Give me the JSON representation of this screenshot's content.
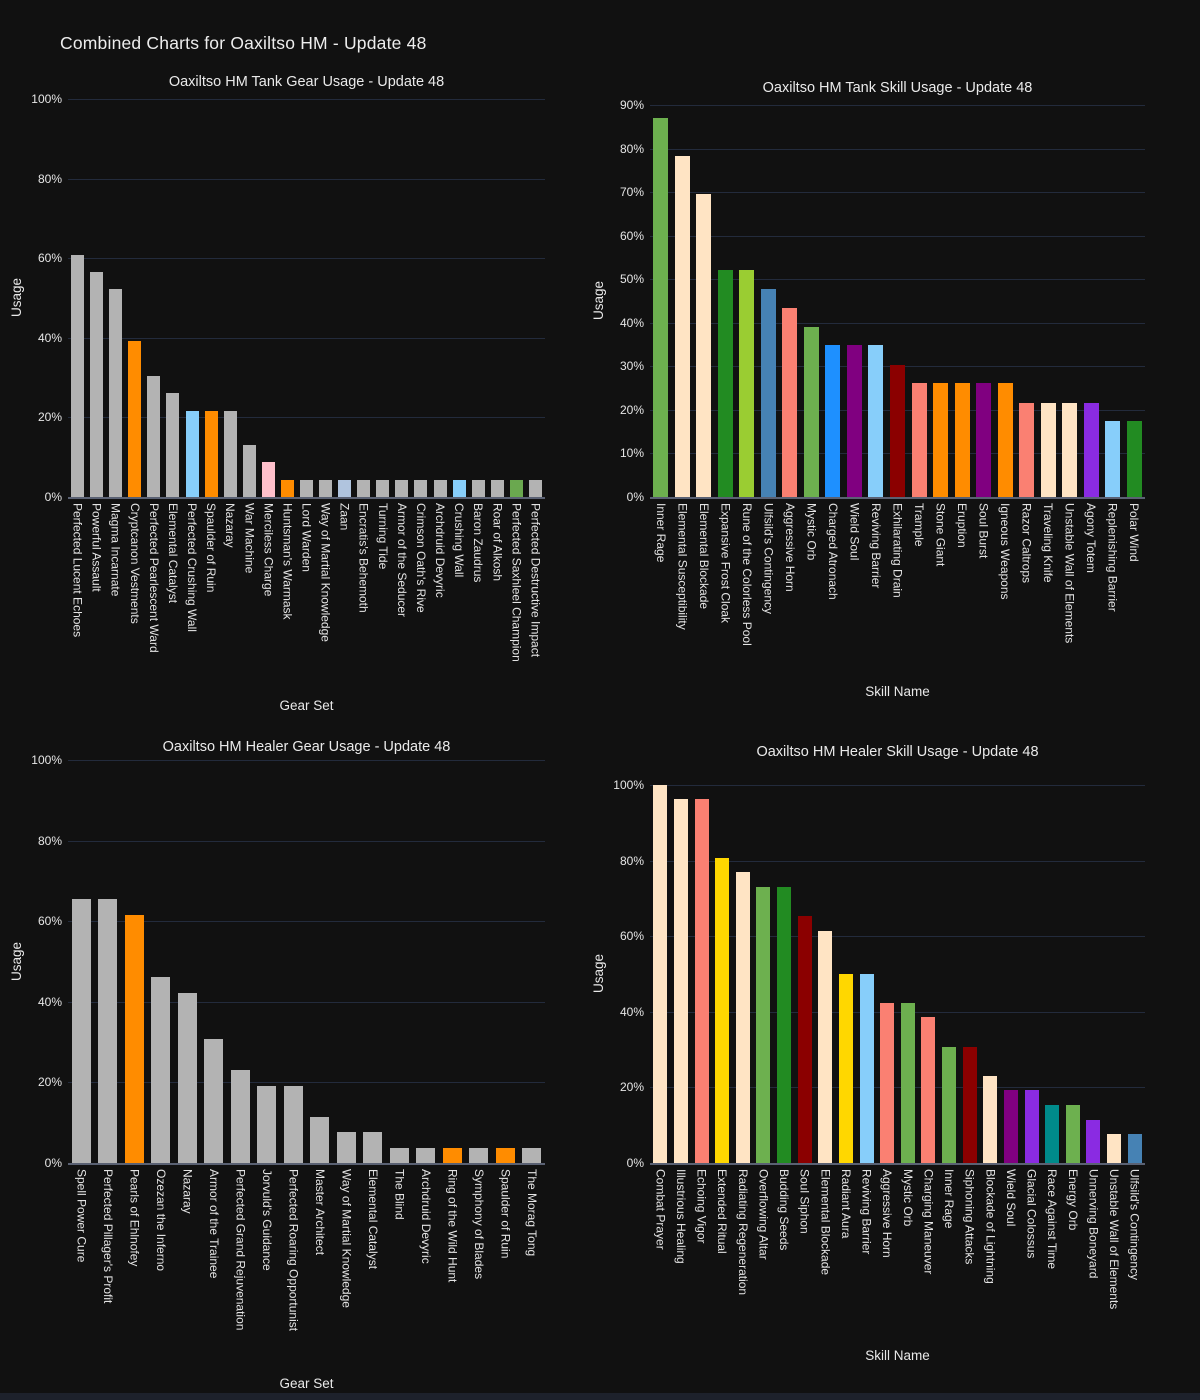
{
  "page": {
    "title": "Combined Charts for Oaxiltso HM - Update 48"
  },
  "colors": {
    "background": "#111111",
    "grid": "#232b3c",
    "axis_line": "#5a6173",
    "text": "#e9e9e9",
    "bar_default_gray": "#b3b3b3",
    "accent_orange": "#ff8c00"
  },
  "chart_data": [
    {
      "type": "bar",
      "title": "Oaxiltso HM Tank Gear Usage - Update 48",
      "xlabel": "Gear Set",
      "ylabel": "Usage",
      "ylim": [
        0,
        100
      ],
      "yticks": [
        "100%",
        "80%",
        "60%",
        "40%",
        "20%",
        "0%"
      ],
      "grid": true,
      "legend": "none",
      "categories": [
        "Perfected Lucent Echoes",
        "Powerful Assault",
        "Magma Incarnate",
        "Cryptcanon Vestments",
        "Perfected Pearlescent Ward",
        "Elemental Catalyst",
        "Perfected Crushing Wall",
        "Spaulder of Ruin",
        "Nazaray",
        "War Machine",
        "Merciless Charge",
        "Huntsman's Warmask",
        "Lord Warden",
        "Way of Martial Knowledge",
        "Zaan",
        "Encratis's Behemoth",
        "Turning Tide",
        "Armor of the Seducer",
        "Crimson Oath's Rive",
        "Archdruid Devyric",
        "Crushing Wall",
        "Baron Zaudrus",
        "Roar of Alkosh",
        "Perfected Saxhleel Champion",
        "Perfected Destructive Impact"
      ],
      "values": [
        60.9,
        56.5,
        52.2,
        39.1,
        30.4,
        26.1,
        21.7,
        21.7,
        21.7,
        13.0,
        8.7,
        4.3,
        4.3,
        4.3,
        4.3,
        4.3,
        4.3,
        4.3,
        4.3,
        4.3,
        4.3,
        4.3,
        4.3,
        4.3,
        4.3
      ],
      "bar_colors": [
        "#b3b3b3",
        "#b3b3b3",
        "#b3b3b3",
        "#ff8c00",
        "#b3b3b3",
        "#b3b3b3",
        "#87cefa",
        "#ff8c00",
        "#b3b3b3",
        "#b3b3b3",
        "#ffc0cb",
        "#ff8c00",
        "#b3b3b3",
        "#b3b3b3",
        "#b0c4de",
        "#b3b3b3",
        "#b3b3b3",
        "#b3b3b3",
        "#b3b3b3",
        "#b3b3b3",
        "#87cefa",
        "#b3b3b3",
        "#b3b3b3",
        "#6aa84f",
        "#b3b3b3"
      ]
    },
    {
      "type": "bar",
      "title": "Oaxiltso HM Tank Skill Usage - Update 48",
      "xlabel": "Skill Name",
      "ylabel": "Usage",
      "ylim": [
        0,
        90
      ],
      "yticks": [
        "90%",
        "80%",
        "70%",
        "60%",
        "50%",
        "40%",
        "30%",
        "20%",
        "10%",
        "0%"
      ],
      "grid": true,
      "legend": "none",
      "categories": [
        "Inner Rage",
        "Elemental Susceptibility",
        "Elemental Blockade",
        "Expansive Frost Cloak",
        "Rune of the Colorless Pool",
        "Ulfsild's Contingency",
        "Aggressive Horn",
        "Mystic Orb",
        "Charged Atronach",
        "Wield Soul",
        "Reviving Barrier",
        "Exhilarating Drain",
        "Trample",
        "Stone Giant",
        "Eruption",
        "Soul Burst",
        "Igneous Weapons",
        "Razor Caltrops",
        "Traveling Knife",
        "Unstable Wall of Elements",
        "Agony Totem",
        "Replenishing Barrier",
        "Polar Wind"
      ],
      "values": [
        87.0,
        78.3,
        69.6,
        52.2,
        52.2,
        47.8,
        43.5,
        39.1,
        34.8,
        34.8,
        34.8,
        30.4,
        26.1,
        26.1,
        26.1,
        26.1,
        26.1,
        21.7,
        21.7,
        21.7,
        21.7,
        17.4,
        17.4
      ],
      "bar_colors": [
        "#6db04f",
        "#ffe4c4",
        "#ffe4c4",
        "#228b22",
        "#9acd32",
        "#4682b4",
        "#fa8072",
        "#6db04f",
        "#1e90ff",
        "#800080",
        "#87cefa",
        "#8b0000",
        "#fa8072",
        "#ff8c00",
        "#ff8c00",
        "#800080",
        "#ff8c00",
        "#fa8072",
        "#ffe4c4",
        "#ffe4c4",
        "#8a2be2",
        "#87cefa",
        "#228b22"
      ]
    },
    {
      "type": "bar",
      "title": "Oaxiltso HM Healer Gear Usage - Update 48",
      "xlabel": "Gear Set",
      "ylabel": "Usage",
      "ylim": [
        0,
        100
      ],
      "yticks": [
        "100%",
        "80%",
        "60%",
        "40%",
        "20%",
        "0%"
      ],
      "grid": true,
      "legend": "none",
      "categories": [
        "Spell Power Cure",
        "Perfected Pillager's Profit",
        "Pearls of Ehlnofey",
        "Ozezan the Inferno",
        "Nazaray",
        "Armor of the Trainee",
        "Perfected Grand Rejuvenation",
        "Jorvuld's Guidance",
        "Perfected Roaring Opportunist",
        "Master Architect",
        "Way of Martial Knowledge",
        "Elemental Catalyst",
        "The Blind",
        "Archdruid Devyric",
        "Ring of the Wild Hunt",
        "Symphony of Blades",
        "Spaulder of Ruin",
        "The Morag Tong"
      ],
      "values": [
        65.4,
        65.4,
        61.5,
        46.2,
        42.3,
        30.8,
        23.1,
        19.2,
        19.2,
        11.5,
        7.7,
        7.7,
        3.8,
        3.8,
        3.8,
        3.8,
        3.8,
        3.8
      ],
      "bar_colors": [
        "#b3b3b3",
        "#b3b3b3",
        "#ff8c00",
        "#b3b3b3",
        "#b3b3b3",
        "#b3b3b3",
        "#b3b3b3",
        "#b3b3b3",
        "#b3b3b3",
        "#b3b3b3",
        "#b3b3b3",
        "#b3b3b3",
        "#b3b3b3",
        "#b3b3b3",
        "#ff8c00",
        "#b3b3b3",
        "#ff8c00",
        "#b3b3b3"
      ]
    },
    {
      "type": "bar",
      "title": "Oaxiltso HM Healer Skill Usage - Update 48",
      "xlabel": "Skill Name",
      "ylabel": "Usage",
      "ylim": [
        0,
        100
      ],
      "yticks": [
        "100%",
        "80%",
        "60%",
        "40%",
        "20%",
        "0%"
      ],
      "grid": true,
      "legend": "none",
      "categories": [
        "Combat Prayer",
        "Illustrious Healing",
        "Echoing Vigor",
        "Extended Ritual",
        "Radiating Regeneration",
        "Overflowing Altar",
        "Budding Seeds",
        "Soul Siphon",
        "Elemental Blockade",
        "Radiant Aura",
        "Reviving Barrier",
        "Aggressive Horn",
        "Mystic Orb",
        "Charging Maneuver",
        "Inner Rage",
        "Siphoning Attacks",
        "Blockade of Lightning",
        "Wield Soul",
        "Glacial Colossus",
        "Race Against Time",
        "Energy Orb",
        "Unnerving Boneyard",
        "Unstable Wall of Elements",
        "Ulfsild's Contingency"
      ],
      "values": [
        100.0,
        96.2,
        96.2,
        80.8,
        76.9,
        73.1,
        73.1,
        65.4,
        61.5,
        50.0,
        50.0,
        42.3,
        42.3,
        38.5,
        30.8,
        30.8,
        23.1,
        19.2,
        19.2,
        15.4,
        15.4,
        11.5,
        7.7,
        7.7
      ],
      "bar_colors": [
        "#ffe4c4",
        "#ffe4c4",
        "#fa8072",
        "#ffd700",
        "#ffe4c4",
        "#6db04f",
        "#228b22",
        "#8b0000",
        "#ffe4c4",
        "#ffd700",
        "#87cefa",
        "#fa8072",
        "#6db04f",
        "#fa8072",
        "#6db04f",
        "#8b0000",
        "#ffe4c4",
        "#800080",
        "#8a2be2",
        "#008b8b",
        "#6db04f",
        "#8a2be2",
        "#ffe4c4",
        "#4682b4"
      ]
    }
  ]
}
